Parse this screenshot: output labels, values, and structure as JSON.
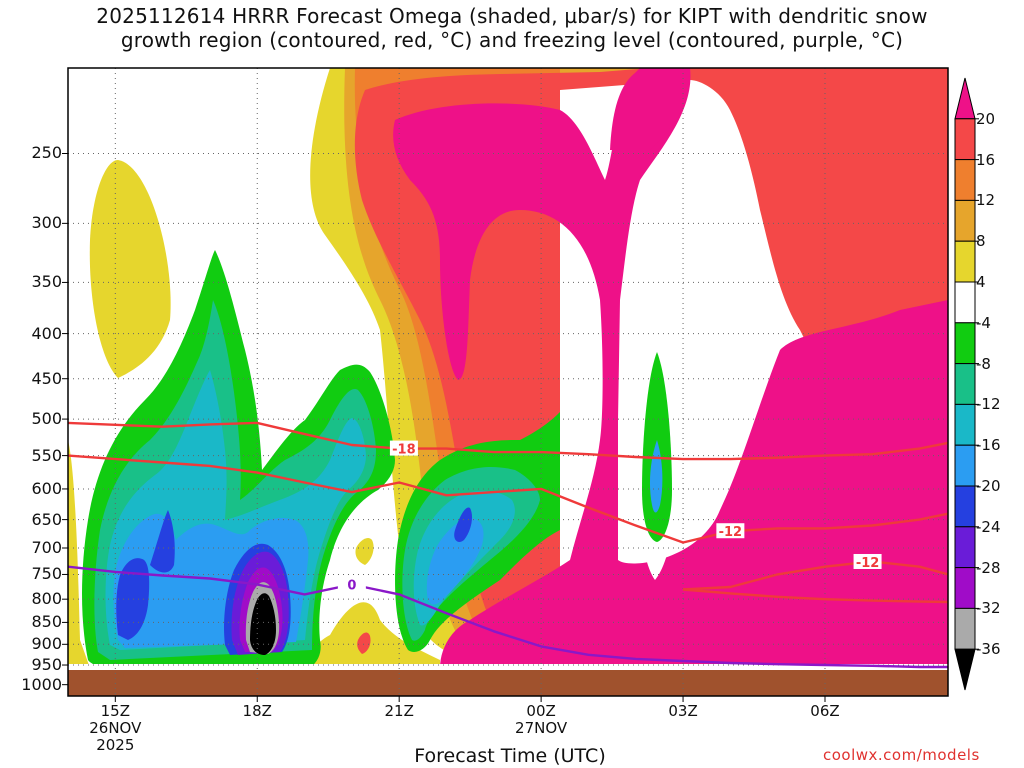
{
  "title": {
    "line1": "2025112614 HRRR Forecast Omega (shaded, µbar/s) for KIPT with dendritic snow",
    "line2": "growth region (contoured, red, °C) and freezing level (contoured, purple, °C)"
  },
  "credit": "coolwx.com/models",
  "chart_data": {
    "type": "heatmap",
    "title": "2025112614 HRRR Forecast Omega (shaded, µbar/s) for KIPT with dendritic snow growth region (contoured, red, °C) and freezing level (contoured, purple, °C)",
    "xlabel": "Forecast Time (UTC)",
    "ylabel": "",
    "x_ticks": [
      {
        "lines": [
          "15Z",
          "26NOV",
          "2025"
        ],
        "hour": 15
      },
      {
        "lines": [
          "18Z"
        ],
        "hour": 18
      },
      {
        "lines": [
          "21Z"
        ],
        "hour": 21
      },
      {
        "lines": [
          "00Z",
          "27NOV"
        ],
        "hour": 24
      },
      {
        "lines": [
          "03Z"
        ],
        "hour": 27
      },
      {
        "lines": [
          "06Z"
        ],
        "hour": 30
      }
    ],
    "y_ticks": [
      250,
      300,
      350,
      400,
      450,
      500,
      550,
      600,
      650,
      700,
      750,
      800,
      850,
      900,
      950,
      1000
    ],
    "xlim_hours": [
      14,
      32.6
    ],
    "ylim_hPa": [
      200,
      1030
    ],
    "y_scale": "log-pressure",
    "grid": true,
    "colorbar": {
      "labels": [
        "20",
        "16",
        "12",
        "8",
        "4",
        "-4",
        "-8",
        "-12",
        "-16",
        "-20",
        "-24",
        "-28",
        "-32",
        "-36"
      ],
      "levels": [
        {
          "range": ">20",
          "color": "#ee1188"
        },
        {
          "range": "16..20",
          "color": "#f44848"
        },
        {
          "range": "12..16",
          "color": "#ef7f2e"
        },
        {
          "range": "8..12",
          "color": "#e6a52c"
        },
        {
          "range": "4..8",
          "color": "#e6d62d"
        },
        {
          "range": "-4..4",
          "color": "#ffffff"
        },
        {
          "range": "-8..-4",
          "color": "#11cc11"
        },
        {
          "range": "-12..-8",
          "color": "#19c088"
        },
        {
          "range": "-16..-12",
          "color": "#1ab8c8"
        },
        {
          "range": "-20..-16",
          "color": "#2b9df2"
        },
        {
          "range": "-24..-20",
          "color": "#2540e0"
        },
        {
          "range": "-28..-24",
          "color": "#6a1cd8"
        },
        {
          "range": "-32..-28",
          "color": "#a00cc8"
        },
        {
          "range": "-36..-32",
          "color": "#aaaaaa"
        },
        {
          "range": "<-36",
          "color": "#000000"
        }
      ]
    },
    "contours": [
      {
        "kind": "dendritic snow growth region",
        "color": "#ef3a3a",
        "labels": [
          "-18",
          "-12",
          "-12"
        ],
        "lines": [
          {
            "hour": [
              14,
              16,
              17,
              18,
              19,
              20,
              21,
              22,
              23,
              24,
              25,
              26,
              27,
              28,
              29,
              30,
              31,
              32,
              32.6
            ],
            "hPa": [
              505,
              510,
              507,
              505,
              520,
              535,
              540,
              540,
              545,
              545,
              548,
              552,
              555,
              555,
              553,
              550,
              548,
              540,
              532
            ]
          },
          {
            "hour": [
              14,
              16,
              17,
              18,
              19,
              20,
              21,
              22,
              23,
              24,
              25,
              26,
              27,
              28,
              29,
              30,
              31,
              32,
              32.6
            ],
            "hPa": [
              550,
              560,
              565,
              575,
              590,
              605,
              590,
              610,
              605,
              600,
              630,
              660,
              690,
              670,
              665,
              665,
              660,
              650,
              640
            ]
          },
          {
            "hour": [
              27,
              28,
              29,
              30,
              31,
              32,
              32.6
            ],
            "hPa": [
              780,
              775,
              750,
              735,
              725,
              735,
              750
            ]
          },
          {
            "hour": [
              27,
              28,
              29,
              30,
              31,
              32,
              32.6
            ],
            "hPa": [
              780,
              788,
              795,
              800,
              803,
              805,
              806
            ]
          }
        ]
      },
      {
        "kind": "freezing level",
        "color": "#8a18c8",
        "labels": [
          "0"
        ],
        "lines": [
          {
            "hour": [
              14,
              15,
              16,
              17,
              18,
              19,
              20,
              21,
              22,
              23,
              24,
              25,
              26,
              27,
              28,
              29,
              30,
              31,
              32,
              32.6
            ],
            "hPa": [
              735,
              745,
              752,
              758,
              770,
              790,
              770,
              790,
              830,
              870,
              905,
              925,
              935,
              940,
              945,
              948,
              950,
              952,
              955,
              955
            ]
          }
        ]
      }
    ]
  }
}
